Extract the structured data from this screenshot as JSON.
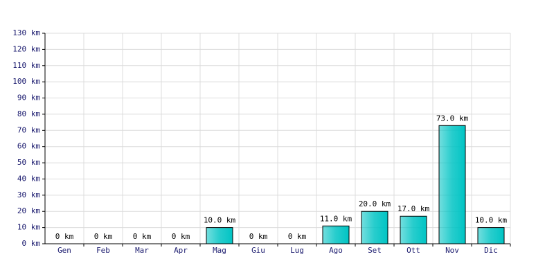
{
  "chart_data": {
    "type": "bar",
    "categories": [
      "Gen",
      "Feb",
      "Mar",
      "Apr",
      "Mag",
      "Giu",
      "Lug",
      "Ago",
      "Set",
      "Ott",
      "Nov",
      "Dic"
    ],
    "values": [
      0,
      0,
      0,
      0,
      10,
      0,
      0,
      11,
      20,
      17,
      73,
      10
    ],
    "value_labels": [
      "0 km",
      "0 km",
      "0 km",
      "0 km",
      "10.0 km",
      "0 km",
      "0 km",
      "11.0 km",
      "20.0 km",
      "17.0 km",
      "73.0 km",
      "10.0 km"
    ],
    "color": "#00c4c4",
    "ylim": [
      0,
      130
    ],
    "yticks": [
      {
        "value": 0,
        "label": "0 km"
      },
      {
        "value": 10,
        "label": "10 km"
      },
      {
        "value": 20,
        "label": "20 km"
      },
      {
        "value": 30,
        "label": "30 km"
      },
      {
        "value": 40,
        "label": "40 km"
      },
      {
        "value": 50,
        "label": "50 km"
      },
      {
        "value": 60,
        "label": "60 km"
      },
      {
        "value": 70,
        "label": "70 km"
      },
      {
        "value": 80,
        "label": "80 km"
      },
      {
        "value": 90,
        "label": "90 km"
      },
      {
        "value": 100,
        "label": "100 km"
      },
      {
        "value": 110,
        "label": "110 km"
      },
      {
        "value": 120,
        "label": "120 km"
      },
      {
        "value": 130,
        "label": "130 km"
      }
    ],
    "grid": true
  }
}
